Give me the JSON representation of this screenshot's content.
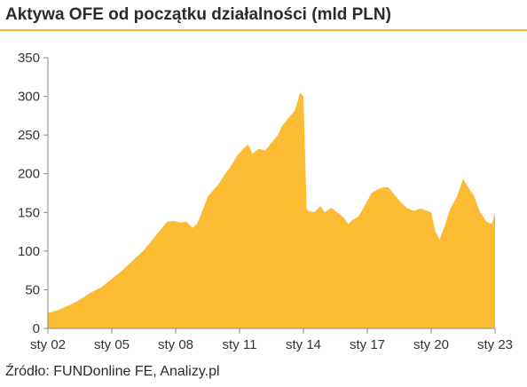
{
  "title": "Aktywa OFE od początku działalności (mld PLN)",
  "source": "Źródło: FUNDonline FE, Analizy.pl",
  "colors": {
    "area": "#fbbc33",
    "rule": "#f5b731",
    "axis": "#8a8a8a"
  },
  "chart_data": {
    "type": "area",
    "title": "Aktywa OFE od początku działalności (mld PLN)",
    "xlabel": "",
    "ylabel": "",
    "ylim": [
      0,
      350
    ],
    "y_ticks": [
      0,
      50,
      100,
      150,
      200,
      250,
      300,
      350
    ],
    "x_tick_labels": [
      "sty 02",
      "sty 05",
      "sty 08",
      "sty 11",
      "sty 14",
      "sty 17",
      "sty 20",
      "sty 23"
    ],
    "x_tick_years": [
      2002,
      2005,
      2008,
      2011,
      2014,
      2017,
      2020,
      2023
    ],
    "xlim": [
      2002,
      2023
    ],
    "grid": false,
    "series": [
      {
        "x": [
          2002.0,
          2002.5,
          2003.0,
          2003.5,
          2004.0,
          2004.5,
          2005.0,
          2005.5,
          2006.0,
          2006.5,
          2007.0,
          2007.3,
          2007.6,
          2007.9,
          2008.2,
          2008.5,
          2008.8,
          2009.0,
          2009.2,
          2009.5,
          2009.8,
          2010.0,
          2010.3,
          2010.6,
          2010.9,
          2011.2,
          2011.4,
          2011.6,
          2011.9,
          2012.2,
          2012.5,
          2012.8,
          2013.0,
          2013.3,
          2013.6,
          2013.85,
          2014.0,
          2014.15,
          2014.2,
          2014.5,
          2014.8,
          2015.0,
          2015.3,
          2015.6,
          2015.9,
          2016.1,
          2016.3,
          2016.6,
          2016.9,
          2017.2,
          2017.5,
          2017.8,
          2018.0,
          2018.3,
          2018.6,
          2018.9,
          2019.2,
          2019.5,
          2019.8,
          2020.0,
          2020.2,
          2020.4,
          2020.6,
          2020.9,
          2021.2,
          2021.5,
          2021.8,
          2022.0,
          2022.3,
          2022.6,
          2022.85,
          2023.0
        ],
        "values": [
          20,
          24,
          30,
          37,
          46,
          53,
          64,
          75,
          88,
          101,
          118,
          128,
          138,
          139,
          137,
          138,
          130,
          135,
          148,
          170,
          180,
          186,
          199,
          210,
          224,
          233,
          238,
          226,
          232,
          230,
          240,
          250,
          262,
          272,
          282,
          305,
          300,
          155,
          152,
          150,
          158,
          150,
          156,
          150,
          143,
          135,
          140,
          145,
          160,
          175,
          180,
          183,
          182,
          172,
          162,
          155,
          152,
          155,
          152,
          150,
          125,
          115,
          130,
          155,
          170,
          193,
          180,
          172,
          150,
          138,
          135,
          150
        ]
      }
    ]
  }
}
